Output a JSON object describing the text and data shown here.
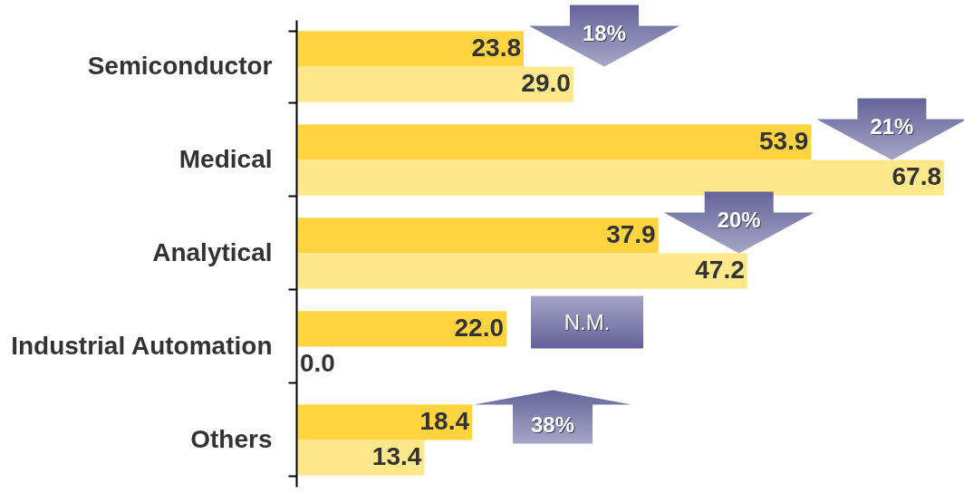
{
  "chart_data": {
    "type": "bar",
    "orientation": "horizontal",
    "categories": [
      "Semiconductor",
      "Medical",
      "Analytical",
      "Industrial Automation",
      "Others"
    ],
    "series": [
      {
        "color": "#ffd43f",
        "values": [
          23.8,
          53.9,
          37.9,
          22.0,
          18.4
        ],
        "value_labels": [
          "23.8",
          "53.9",
          "37.9",
          "22.0",
          "18.4"
        ]
      },
      {
        "color": "#ffe88c",
        "values": [
          29.0,
          67.8,
          47.2,
          0.0,
          13.4
        ],
        "value_labels": [
          "29.0",
          "67.8",
          "47.2",
          "0.0",
          "13.4"
        ]
      }
    ],
    "annotations": [
      "18%",
      "21%",
      "20%",
      "N.M.",
      "38%"
    ]
  }
}
